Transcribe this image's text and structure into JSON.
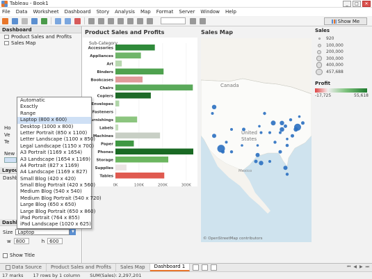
{
  "window": {
    "title": "Tableau - Book1",
    "min": "_",
    "max": "□",
    "close": "✕"
  },
  "menu": [
    "File",
    "Data",
    "Worksheet",
    "Dashboard",
    "Story",
    "Analysis",
    "Map",
    "Format",
    "Server",
    "Window",
    "Help"
  ],
  "toolbar": {
    "show_me": "Show Me"
  },
  "left": {
    "dashboard_header": "Dashboard",
    "sheets": [
      "Product Sales and Profits",
      "Sales Map"
    ],
    "objects": [
      "Ho",
      "Ve",
      "Te"
    ],
    "new_label": "New o",
    "layout_header": "Layou",
    "layout_sub": "Dashbo",
    "size_header": "Dashb",
    "size_label": "Size",
    "size_value": "Laptop",
    "w_label": "w",
    "w_value": "800",
    "h_label": "h",
    "h_value": "600",
    "show_title": "Show Title"
  },
  "size_dropdown": {
    "items": [
      "Automatic",
      "Exactly",
      "Range",
      "Laptop (800 x 600)",
      "Desktop (1000 x 800)",
      "Letter Portrait (850 x 1100)",
      "Letter Landscape (1100 x 850)",
      "Legal Landscape (1150 x 700)",
      "A3 Portrait (1169 x 1654)",
      "A3 Landscape (1654 x 1169)",
      "A4 Portrait (827 x 1169)",
      "A4 Landscape (1169 x 827)",
      "Small Blog (420 x 420)",
      "Small Blog Portrait (420 x 560)",
      "Medium Blog (540 x 540)",
      "Medium Blog Portrait (540 x 720)",
      "Large Blog (650 x 650)",
      "Large Blog Portrait (650 x 860)",
      "iPad Portrait (764 x 855)",
      "iPad Landscape (1020 x 625)"
    ],
    "selected": "Laptop (800 x 600)"
  },
  "dashboard": {
    "bar_title": "Product Sales and Profits",
    "map_title": "Sales Map",
    "map_attribution": "© OpenStreetMap contributors",
    "map_labels": {
      "canada": "Canada",
      "us1": "United",
      "us2": "States",
      "mexico": "Mexico"
    }
  },
  "chart_data": {
    "type": "bar",
    "orientation": "horizontal",
    "xlabel": "Sales",
    "ylabel": "Sub-Category",
    "xlim": [
      0,
      330000
    ],
    "xticks": [
      "0K",
      "100K",
      "200K",
      "300K"
    ],
    "categories": [
      "Accessories",
      "Appliances",
      "Art",
      "Binders",
      "Bookcases",
      "Chairs",
      "Copiers",
      "Envelopes",
      "Fasteners",
      "Furnishings",
      "Labels",
      "Machines",
      "Paper",
      "Phones",
      "Storage",
      "Supplies",
      "Tables"
    ],
    "values": [
      167000,
      108000,
      27000,
      204000,
      115000,
      328000,
      150000,
      16000,
      3000,
      92000,
      12000,
      189000,
      78000,
      330000,
      224000,
      47000,
      207000
    ],
    "colors": [
      "#2f8a3a",
      "#6fb56a",
      "#b8d8b0",
      "#4fa24f",
      "#e09a9a",
      "#5aa95a",
      "#1e6b28",
      "#b0d5a8",
      "#dcdcdc",
      "#8cc57f",
      "#c4dfbc",
      "#c8cfc5",
      "#3f9843",
      "#1a6a24",
      "#6cb660",
      "#ece4e4",
      "#e05a50"
    ]
  },
  "map_dots": [
    {
      "lat": 47,
      "lon": -122,
      "r": 3.2
    },
    {
      "lat": 45,
      "lon": -123,
      "r": 2
    },
    {
      "lat": 38,
      "lon": -122,
      "r": 3
    },
    {
      "lat": 34,
      "lon": -118,
      "r": 5.5
    },
    {
      "lat": 33,
      "lon": -117,
      "r": 2.5
    },
    {
      "lat": 36,
      "lon": -115,
      "r": 2
    },
    {
      "lat": 40,
      "lon": -112,
      "r": 2
    },
    {
      "lat": 40,
      "lon": -105,
      "r": 2.5
    },
    {
      "lat": 33,
      "lon": -112,
      "r": 2.2
    },
    {
      "lat": 35,
      "lon": -106,
      "r": 1.8
    },
    {
      "lat": 30,
      "lon": -98,
      "r": 2.5
    },
    {
      "lat": 32,
      "lon": -97,
      "r": 3
    },
    {
      "lat": 29.5,
      "lon": -95,
      "r": 3.2
    },
    {
      "lat": 35,
      "lon": -97,
      "r": 1.8
    },
    {
      "lat": 39,
      "lon": -95,
      "r": 2
    },
    {
      "lat": 41,
      "lon": -96,
      "r": 1.8
    },
    {
      "lat": 45,
      "lon": -93,
      "r": 2.2
    },
    {
      "lat": 42,
      "lon": -88,
      "r": 3.5
    },
    {
      "lat": 39,
      "lon": -90,
      "r": 2
    },
    {
      "lat": 36,
      "lon": -87,
      "r": 2.2
    },
    {
      "lat": 33,
      "lon": -84,
      "r": 2.5
    },
    {
      "lat": 30,
      "lon": -90,
      "r": 2
    },
    {
      "lat": 28,
      "lon": -81,
      "r": 3
    },
    {
      "lat": 26,
      "lon": -80,
      "r": 2.2
    },
    {
      "lat": 35,
      "lon": -80,
      "r": 2.3
    },
    {
      "lat": 38,
      "lon": -77,
      "r": 2.5
    },
    {
      "lat": 40,
      "lon": -75,
      "r": 3.2
    },
    {
      "lat": 40.7,
      "lon": -74,
      "r": 5
    },
    {
      "lat": 42,
      "lon": -71,
      "r": 2.5
    },
    {
      "lat": 42,
      "lon": -83,
      "r": 3.2
    },
    {
      "lat": 40,
      "lon": -83,
      "r": 3.3
    },
    {
      "lat": 41,
      "lon": -81,
      "r": 2.5
    },
    {
      "lat": 43,
      "lon": -78,
      "r": 2.2
    },
    {
      "lat": 39,
      "lon": -84,
      "r": 2
    },
    {
      "lat": 37,
      "lon": -80,
      "r": 1.8
    },
    {
      "lat": 44,
      "lon": -73,
      "r": 1.8
    }
  ],
  "size_legend": {
    "title": "Sales",
    "items": [
      {
        "label": "920",
        "r": 1.5
      },
      {
        "label": "100,000",
        "r": 2.5
      },
      {
        "label": "200,000",
        "r": 3.2
      },
      {
        "label": "300,000",
        "r": 3.8
      },
      {
        "label": "400,000",
        "r": 4.3
      },
      {
        "label": "457,688",
        "r": 4.7
      }
    ]
  },
  "profit_legend": {
    "title": "Profit",
    "min": "-17,725",
    "max": "55,618"
  },
  "tabs": [
    {
      "label": "Data Source",
      "active": false
    },
    {
      "label": "Product Sales and Profits",
      "active": false
    },
    {
      "label": "Sales Map",
      "active": false
    },
    {
      "label": "Dashboard 1",
      "active": true
    }
  ],
  "tab_nav": {
    "first": "⏮",
    "prev": "◀",
    "next": "▶",
    "last": "⏭"
  },
  "status": {
    "marks": "17 marks",
    "rows": "17 rows by 1 column",
    "sum": "SUM(Sales): 2,297,201"
  }
}
